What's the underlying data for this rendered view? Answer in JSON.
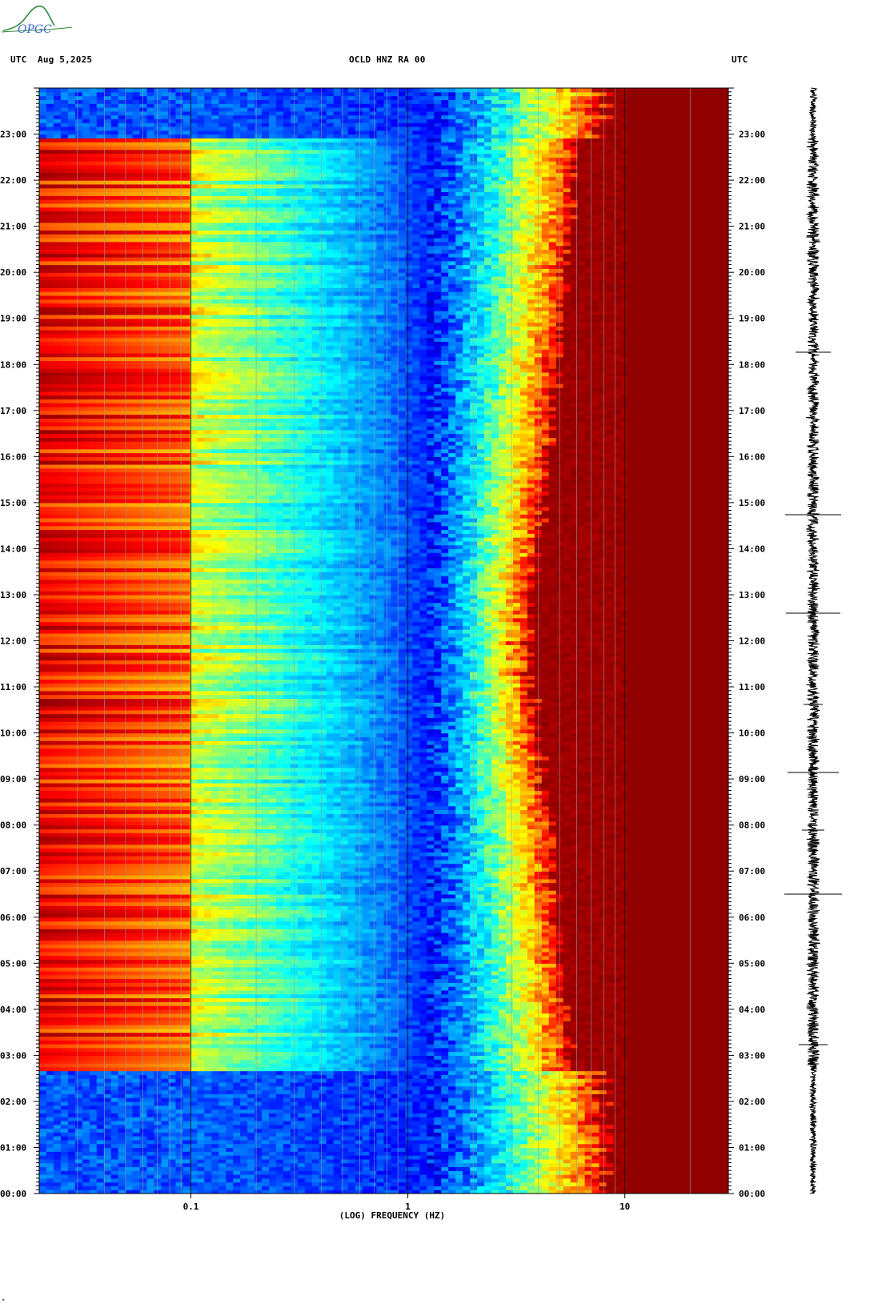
{
  "header": {
    "left_utc": "UTC",
    "date": "Aug 5,2025",
    "station": "OCLD HNZ RA 00",
    "right_utc": "UTC",
    "logo_text": "OPGC"
  },
  "footer_mark": "*",
  "chart_data": {
    "type": "heatmap",
    "title": "OCLD HNZ RA 00",
    "xlabel": "(LOG) FREQUENCY (HZ)",
    "x_scale": "log",
    "xlim": [
      0.02,
      30
    ],
    "x_tick_labels": [
      {
        "value": 0.1,
        "label": "0.1"
      },
      {
        "value": 1,
        "label": "1"
      },
      {
        "value": 10,
        "label": "10"
      }
    ],
    "ylim_hours": [
      0,
      24
    ],
    "y_tick_labels": [
      "00:00",
      "01:00",
      "02:00",
      "03:00",
      "04:00",
      "05:00",
      "06:00",
      "07:00",
      "08:00",
      "09:00",
      "10:00",
      "11:00",
      "12:00",
      "13:00",
      "14:00",
      "15:00",
      "16:00",
      "17:00",
      "18:00",
      "19:00",
      "20:00",
      "21:00",
      "22:00",
      "23:00"
    ],
    "colormap": [
      "#000090",
      "#0000ff",
      "#0090ff",
      "#00ffff",
      "#90ff70",
      "#ffff00",
      "#ff9000",
      "#ff0000",
      "#900000"
    ],
    "regimes": [
      {
        "from_hour": 0,
        "to_hour": 2.7,
        "description": "quiet: low frequencies blue, high frequencies red above ~8 Hz"
      },
      {
        "from_hour": 2.7,
        "to_hour": 22.9,
        "description": "energetic: low frequencies yellow/red, high frequencies red above ~4-6 Hz"
      },
      {
        "from_hour": 22.9,
        "to_hour": 24,
        "description": "quiet: low frequencies blue, high frequencies red above ~8 Hz"
      }
    ],
    "seismogram": "waveform trace along the right side, time running bottom to top"
  }
}
